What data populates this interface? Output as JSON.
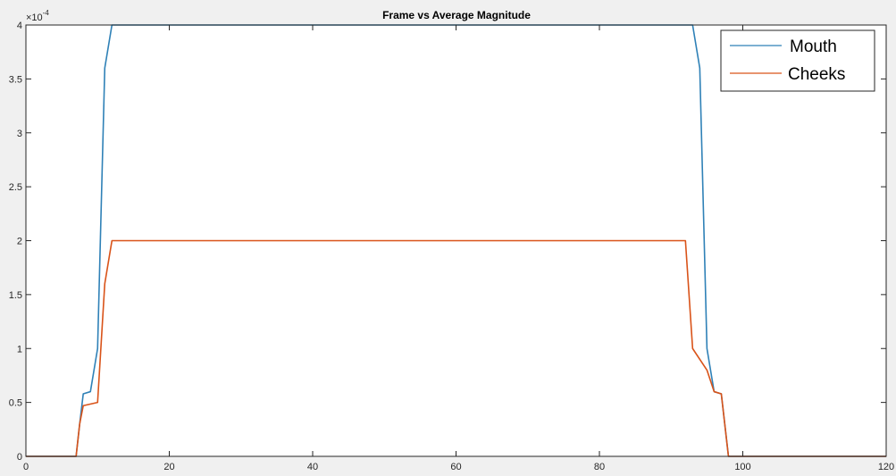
{
  "chart_data": {
    "type": "line",
    "title": "Frame vs Average Magnitude",
    "xlabel": "",
    "ylabel": "",
    "xlim": [
      0,
      120
    ],
    "ylim": [
      0,
      4
    ],
    "y_exponent_label": "×10",
    "y_exponent_power": "-4",
    "xticks": [
      0,
      20,
      40,
      60,
      80,
      100,
      120
    ],
    "yticks": [
      0,
      0.5,
      1,
      1.5,
      2,
      2.5,
      3,
      3.5,
      4
    ],
    "grid": false,
    "legend_position": "top-right",
    "series": [
      {
        "name": "Mouth",
        "color": "#2f81b7",
        "x": [
          0,
          7,
          7.5,
          8,
          9,
          10,
          11,
          12,
          12.5,
          93,
          94,
          95,
          96,
          97,
          98,
          120
        ],
        "y": [
          0,
          0,
          0.3,
          0.58,
          0.6,
          1.0,
          3.6,
          4.0,
          4.0,
          4.0,
          3.6,
          1.0,
          0.6,
          0.58,
          0,
          0
        ]
      },
      {
        "name": "Cheeks",
        "color": "#d95319",
        "x": [
          0,
          7,
          7.5,
          8,
          10,
          11,
          12,
          92,
          93,
          95,
          96,
          97,
          98,
          120
        ],
        "y": [
          0,
          0,
          0.3,
          0.47,
          0.5,
          1.6,
          2.0,
          2.0,
          1.0,
          0.8,
          0.6,
          0.58,
          0,
          0
        ]
      }
    ]
  }
}
